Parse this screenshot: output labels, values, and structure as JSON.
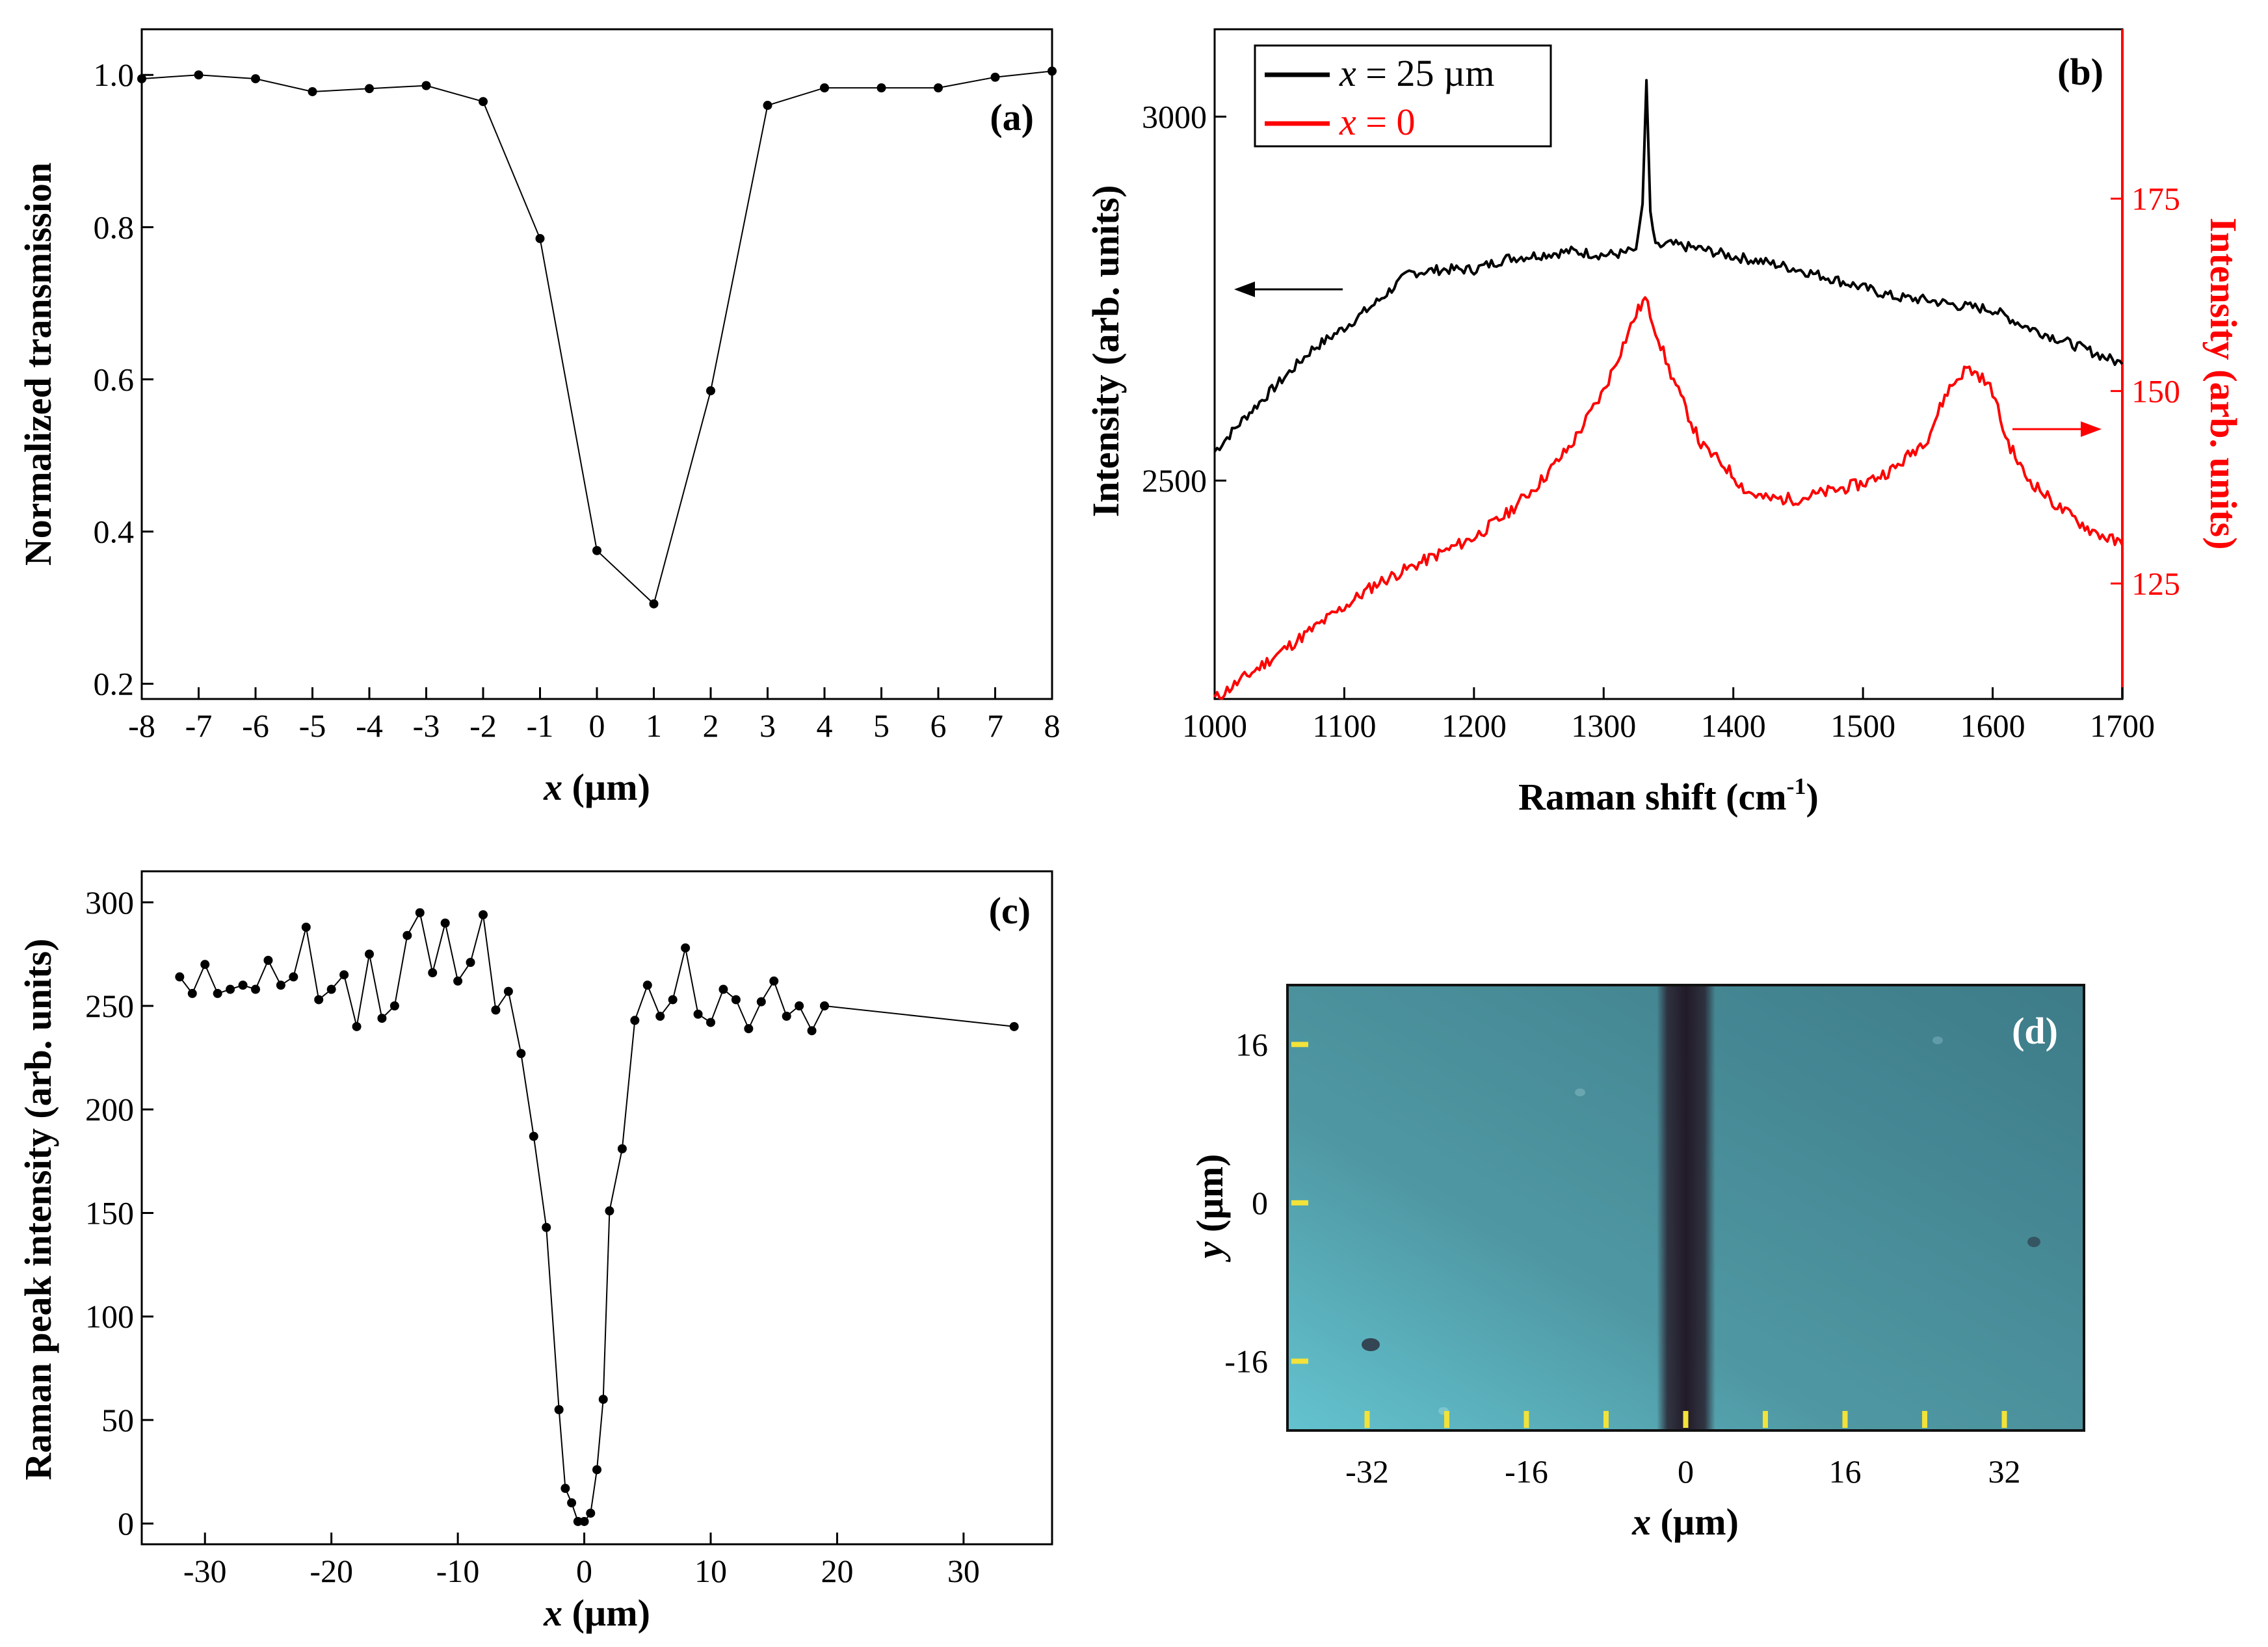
{
  "colors": {
    "black": "#000000",
    "red": "#ff0000",
    "image_bg": "#5aa3ad",
    "band": "#2a2230",
    "marker": "#f2e23a"
  },
  "chart_data": [
    {
      "id": "a",
      "type": "line",
      "panel_label": "(a)",
      "xlabel_italic": "x",
      "xlabel_rest": " (µm)",
      "ylabel": "Normalized transmission",
      "xlim": [
        -8,
        8
      ],
      "ylim": [
        0.18,
        1.06
      ],
      "xticks": [
        -8,
        -7,
        -6,
        -5,
        -4,
        -3,
        -2,
        -1,
        0,
        1,
        2,
        3,
        4,
        5,
        6,
        7,
        8
      ],
      "xtick_labels": [
        "-8",
        "-7",
        "-6",
        "-5",
        "-4",
        "-3",
        "-2",
        "-1",
        "0",
        "1",
        "2",
        "3",
        "4",
        "5",
        "6",
        "7",
        "8"
      ],
      "yticks": [
        0.2,
        0.4,
        0.6,
        0.8,
        1.0
      ],
      "ytick_labels": [
        "0.2",
        "0.4",
        "0.6",
        "0.8",
        "1.0"
      ],
      "x": [
        -8,
        -7,
        -6,
        -5,
        -4,
        -3,
        -2,
        -1,
        0,
        1,
        2,
        3,
        4,
        5,
        6,
        7,
        8
      ],
      "y": [
        0.995,
        1.0,
        0.995,
        0.978,
        0.982,
        0.986,
        0.965,
        0.785,
        0.375,
        0.305,
        0.585,
        0.96,
        0.983,
        0.983,
        0.983,
        0.997,
        1.005
      ]
    },
    {
      "id": "b",
      "type": "line",
      "panel_label": "(b)",
      "xlabel": "Raman shift (cm",
      "xlabel_sup": "-1",
      "xlabel_end": ")",
      "ylabel_left": "Intensity (arb. units)",
      "ylabel_right": "Intensity (arb. units)",
      "xlim": [
        1000,
        1700
      ],
      "ylim_left": [
        2200,
        3120
      ],
      "ylim_right": [
        110,
        197
      ],
      "xticks": [
        1000,
        1100,
        1200,
        1300,
        1400,
        1500,
        1600,
        1700
      ],
      "xtick_labels": [
        "1000",
        "1100",
        "1200",
        "1300",
        "1400",
        "1500",
        "1600",
        "1700"
      ],
      "yticks_left": [
        2500,
        3000
      ],
      "ytick_labels_left": [
        "2500",
        "3000"
      ],
      "yticks_right": [
        125,
        150,
        175
      ],
      "ytick_labels_right": [
        "125",
        "150",
        "175"
      ],
      "legend": [
        {
          "italic": "x",
          "rest": " = 25 µm",
          "color": "#000000"
        },
        {
          "italic": "x",
          "rest": " = 0",
          "color": "#ff0000"
        }
      ],
      "series": [
        {
          "name": "x = 25 µm",
          "axis": "left",
          "color": "#000000",
          "x": [
            1000,
            1025,
            1050,
            1075,
            1100,
            1125,
            1150,
            1175,
            1200,
            1225,
            1250,
            1275,
            1300,
            1315,
            1325,
            1330,
            1333,
            1336,
            1340,
            1350,
            1375,
            1400,
            1425,
            1450,
            1475,
            1500,
            1525,
            1550,
            1575,
            1600,
            1625,
            1650,
            1675,
            1700
          ],
          "y": [
            2540,
            2590,
            2635,
            2680,
            2710,
            2745,
            2785,
            2790,
            2790,
            2805,
            2810,
            2815,
            2810,
            2812,
            2818,
            2880,
            3050,
            2870,
            2820,
            2825,
            2818,
            2808,
            2800,
            2790,
            2778,
            2765,
            2752,
            2748,
            2740,
            2735,
            2712,
            2695,
            2678,
            2660
          ]
        },
        {
          "name": "x = 0",
          "axis": "right",
          "color": "#ff0000",
          "x": [
            1000,
            1025,
            1050,
            1075,
            1100,
            1125,
            1150,
            1175,
            1200,
            1225,
            1250,
            1275,
            1300,
            1315,
            1325,
            1332,
            1340,
            1350,
            1375,
            1395,
            1410,
            1425,
            1450,
            1475,
            1500,
            1525,
            1550,
            1565,
            1580,
            1590,
            1600,
            1610,
            1625,
            1650,
            1675,
            1700
          ],
          "y": [
            110,
            113,
            116,
            119,
            122,
            125,
            127,
            129,
            131,
            134,
            138,
            143,
            150,
            156,
            160,
            162,
            158,
            153,
            143,
            140,
            137,
            136,
            136,
            137,
            138,
            140,
            144,
            150,
            153,
            152,
            150,
            144,
            139,
            135,
            132,
            130
          ]
        }
      ]
    },
    {
      "id": "c",
      "type": "line",
      "panel_label": "(c)",
      "xlabel_italic": "x",
      "xlabel_rest": " (µm)",
      "ylabel": "Raman peak intensity (arb. units)",
      "xlim": [
        -35,
        37
      ],
      "ylim": [
        -10,
        315
      ],
      "xticks": [
        -30,
        -20,
        -10,
        0,
        10,
        20,
        30
      ],
      "xtick_labels": [
        "-30",
        "-20",
        "-10",
        "0",
        "10",
        "20",
        "30"
      ],
      "yticks": [
        0,
        50,
        100,
        150,
        200,
        250,
        300
      ],
      "ytick_labels": [
        "0",
        "50",
        "100",
        "150",
        "200",
        "250",
        "300"
      ],
      "x": [
        -32,
        -31,
        -30,
        -29,
        -28,
        -27,
        -26,
        -25,
        -24,
        -23,
        -22,
        -21,
        -20,
        -19,
        -18,
        -17,
        -16,
        -15,
        -14,
        -13,
        -12,
        -11,
        -10,
        -9,
        -8,
        -7,
        -6,
        -5,
        -4,
        -3,
        -2,
        -1.5,
        -1,
        -0.5,
        0,
        0.5,
        1,
        1.5,
        2,
        3,
        4,
        5,
        6,
        7,
        8,
        9,
        10,
        11,
        12,
        13,
        14,
        15,
        16,
        17,
        18,
        19,
        34
      ],
      "y": [
        264,
        256,
        270,
        256,
        258,
        260,
        258,
        272,
        260,
        264,
        288,
        253,
        258,
        265,
        240,
        275,
        244,
        250,
        284,
        295,
        266,
        290,
        262,
        271,
        294,
        248,
        257,
        227,
        187,
        143,
        55,
        17,
        10,
        1,
        1,
        5,
        26,
        60,
        151,
        181,
        243,
        260,
        245,
        253,
        278,
        246,
        242,
        258,
        253,
        239,
        252,
        262,
        245,
        250,
        238,
        250,
        240
      ]
    }
  ],
  "panel_d": {
    "panel_label": "(d)",
    "xlabel_italic": "x",
    "xlabel_rest": " (µm)",
    "ylabel_italic": "y",
    "ylabel_rest": " (µm)",
    "xtick_values": [
      -32,
      -16,
      0,
      16,
      32
    ],
    "xtick_labels": [
      "-32",
      "-16",
      "0",
      "16",
      "32"
    ],
    "ytick_values": [
      16,
      0,
      -16
    ],
    "ytick_labels": [
      "16",
      "0",
      "-16"
    ],
    "xlim": [
      -40,
      40
    ],
    "ylim": [
      -23,
      22
    ],
    "marker_x_values": [
      -32,
      -24,
      -16,
      -8,
      0,
      8,
      16,
      24,
      32
    ],
    "band_center_x": 0,
    "band_width_um": 5
  }
}
